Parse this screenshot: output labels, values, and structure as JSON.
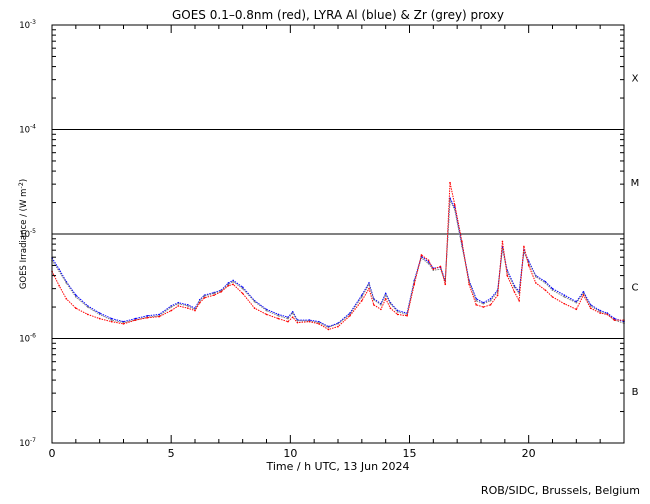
{
  "chart_data": {
    "type": "line",
    "title": "GOES 0.1–0.8nm (red), LYRA Al (blue) & Zr (grey) proxy",
    "xlabel": "Time / h UTC, 13 Jun 2024",
    "ylabel_main": "GOES Irradiance / (W m",
    "ylabel_exp": "-2",
    "ylabel_close": ")",
    "y_scale": "log",
    "xlim": [
      0,
      24
    ],
    "ylim": [
      1e-07,
      0.001
    ],
    "grid": false,
    "x_ticks": [
      {
        "value": 0,
        "label": "0"
      },
      {
        "value": 5,
        "label": "5"
      },
      {
        "value": 10,
        "label": "10"
      },
      {
        "value": 15,
        "label": "15"
      },
      {
        "value": 20,
        "label": "20"
      }
    ],
    "y_ticks": [
      {
        "exp": -7,
        "base": "10",
        "sup": "-7"
      },
      {
        "exp": -6,
        "base": "10",
        "sup": "-6"
      },
      {
        "exp": -5,
        "base": "10",
        "sup": "-5"
      },
      {
        "exp": -4,
        "base": "10",
        "sup": "-4"
      },
      {
        "exp": -3,
        "base": "10",
        "sup": "-3"
      }
    ],
    "class_thresholds": [
      1e-06,
      1e-05,
      0.0001
    ],
    "flare_classes": [
      {
        "label": "B",
        "log_mid": -6.5
      },
      {
        "label": "C",
        "log_mid": -5.5
      },
      {
        "label": "M",
        "log_mid": -4.5
      },
      {
        "label": "X",
        "log_mid": -3.5
      }
    ],
    "series": [
      {
        "color": "#0000ff",
        "values": [
          [
            0,
            5.9e-06
          ],
          [
            0.3,
            4.6e-06
          ],
          [
            0.6,
            3.5e-06
          ],
          [
            1.0,
            2.6e-06
          ],
          [
            1.5,
            2.05e-06
          ],
          [
            2.0,
            1.75e-06
          ],
          [
            2.5,
            1.55e-06
          ],
          [
            3.0,
            1.45e-06
          ],
          [
            3.5,
            1.55e-06
          ],
          [
            4.0,
            1.65e-06
          ],
          [
            4.5,
            1.7e-06
          ],
          [
            5.0,
            2.05e-06
          ],
          [
            5.3,
            2.2e-06
          ],
          [
            5.7,
            2.1e-06
          ],
          [
            6.0,
            1.95e-06
          ],
          [
            6.2,
            2.35e-06
          ],
          [
            6.4,
            2.6e-06
          ],
          [
            6.8,
            2.75e-06
          ],
          [
            7.1,
            2.9e-06
          ],
          [
            7.4,
            3.4e-06
          ],
          [
            7.6,
            3.6e-06
          ],
          [
            8.0,
            3.1e-06
          ],
          [
            8.5,
            2.3e-06
          ],
          [
            9.0,
            1.9e-06
          ],
          [
            9.5,
            1.7e-06
          ],
          [
            9.9,
            1.6e-06
          ],
          [
            10.1,
            1.8e-06
          ],
          [
            10.3,
            1.5e-06
          ],
          [
            10.8,
            1.5e-06
          ],
          [
            11.2,
            1.45e-06
          ],
          [
            11.6,
            1.3e-06
          ],
          [
            12.0,
            1.4e-06
          ],
          [
            12.5,
            1.75e-06
          ],
          [
            13.0,
            2.6e-06
          ],
          [
            13.3,
            3.4e-06
          ],
          [
            13.5,
            2.4e-06
          ],
          [
            13.8,
            2.15e-06
          ],
          [
            14.0,
            2.7e-06
          ],
          [
            14.2,
            2.2e-06
          ],
          [
            14.5,
            1.85e-06
          ],
          [
            14.9,
            1.75e-06
          ],
          [
            15.2,
            3.6e-06
          ],
          [
            15.5,
            6.1e-06
          ],
          [
            15.8,
            5.4e-06
          ],
          [
            16.0,
            4.7e-06
          ],
          [
            16.3,
            4.8e-06
          ],
          [
            16.5,
            3.6e-06
          ],
          [
            16.7,
            2.2e-05
          ],
          [
            16.9,
            1.8e-05
          ],
          [
            17.2,
            8e-06
          ],
          [
            17.5,
            3.6e-06
          ],
          [
            17.8,
            2.4e-06
          ],
          [
            18.1,
            2.2e-06
          ],
          [
            18.4,
            2.4e-06
          ],
          [
            18.7,
            2.9e-06
          ],
          [
            18.9,
            7.5e-06
          ],
          [
            19.1,
            4.5e-06
          ],
          [
            19.4,
            3.2e-06
          ],
          [
            19.6,
            2.8e-06
          ],
          [
            19.8,
            7e-06
          ],
          [
            20.0,
            5.5e-06
          ],
          [
            20.3,
            4e-06
          ],
          [
            20.7,
            3.5e-06
          ],
          [
            21.0,
            3e-06
          ],
          [
            21.5,
            2.6e-06
          ],
          [
            22.0,
            2.25e-06
          ],
          [
            22.3,
            2.8e-06
          ],
          [
            22.6,
            2.1e-06
          ],
          [
            23.0,
            1.85e-06
          ],
          [
            23.3,
            1.75e-06
          ],
          [
            23.6,
            1.55e-06
          ],
          [
            24.0,
            1.45e-06
          ]
        ]
      },
      {
        "color": "#808080",
        "values": [
          [
            0,
            5.6e-06
          ],
          [
            0.3,
            4.4e-06
          ],
          [
            0.6,
            3.4e-06
          ],
          [
            1.0,
            2.5e-06
          ],
          [
            1.5,
            2e-06
          ],
          [
            2.0,
            1.7e-06
          ],
          [
            2.5,
            1.5e-06
          ],
          [
            3.0,
            1.42e-06
          ],
          [
            3.5,
            1.5e-06
          ],
          [
            4.0,
            1.6e-06
          ],
          [
            4.5,
            1.65e-06
          ],
          [
            5.0,
            2e-06
          ],
          [
            5.3,
            2.15e-06
          ],
          [
            5.7,
            2.05e-06
          ],
          [
            6.0,
            1.9e-06
          ],
          [
            6.2,
            2.3e-06
          ],
          [
            6.4,
            2.55e-06
          ],
          [
            6.8,
            2.7e-06
          ],
          [
            7.1,
            2.85e-06
          ],
          [
            7.4,
            3.3e-06
          ],
          [
            7.6,
            3.5e-06
          ],
          [
            8.0,
            3e-06
          ],
          [
            8.5,
            2.25e-06
          ],
          [
            9.0,
            1.85e-06
          ],
          [
            9.5,
            1.65e-06
          ],
          [
            9.9,
            1.55e-06
          ],
          [
            10.1,
            1.75e-06
          ],
          [
            10.3,
            1.48e-06
          ],
          [
            10.8,
            1.47e-06
          ],
          [
            11.2,
            1.42e-06
          ],
          [
            11.6,
            1.28e-06
          ],
          [
            12.0,
            1.38e-06
          ],
          [
            12.5,
            1.7e-06
          ],
          [
            13.0,
            2.5e-06
          ],
          [
            13.3,
            3.3e-06
          ],
          [
            13.5,
            2.35e-06
          ],
          [
            13.8,
            2.1e-06
          ],
          [
            14.0,
            2.6e-06
          ],
          [
            14.2,
            2.15e-06
          ],
          [
            14.5,
            1.8e-06
          ],
          [
            14.9,
            1.7e-06
          ],
          [
            15.2,
            3.5e-06
          ],
          [
            15.5,
            5.9e-06
          ],
          [
            15.8,
            5.2e-06
          ],
          [
            16.0,
            4.5e-06
          ],
          [
            16.3,
            4.6e-06
          ],
          [
            16.5,
            3.5e-06
          ],
          [
            16.7,
            2.1e-05
          ],
          [
            16.9,
            1.7e-05
          ],
          [
            17.2,
            7.6e-06
          ],
          [
            17.5,
            3.5e-06
          ],
          [
            17.8,
            2.3e-06
          ],
          [
            18.1,
            2.15e-06
          ],
          [
            18.4,
            2.3e-06
          ],
          [
            18.7,
            2.8e-06
          ],
          [
            18.9,
            7.2e-06
          ],
          [
            19.1,
            4.3e-06
          ],
          [
            19.4,
            3.1e-06
          ],
          [
            19.6,
            2.7e-06
          ],
          [
            19.8,
            6.7e-06
          ],
          [
            20.0,
            5.3e-06
          ],
          [
            20.3,
            3.9e-06
          ],
          [
            20.7,
            3.4e-06
          ],
          [
            21.0,
            2.9e-06
          ],
          [
            21.5,
            2.5e-06
          ],
          [
            22.0,
            2.2e-06
          ],
          [
            22.3,
            2.7e-06
          ],
          [
            22.6,
            2.05e-06
          ],
          [
            23.0,
            1.8e-06
          ],
          [
            23.3,
            1.7e-06
          ],
          [
            23.6,
            1.5e-06
          ],
          [
            24.0,
            1.4e-06
          ]
        ]
      },
      {
        "color": "#ff0000",
        "values": [
          [
            0,
            4.4e-06
          ],
          [
            0.3,
            3.2e-06
          ],
          [
            0.6,
            2.4e-06
          ],
          [
            1.0,
            1.95e-06
          ],
          [
            1.5,
            1.7e-06
          ],
          [
            2.0,
            1.55e-06
          ],
          [
            2.5,
            1.45e-06
          ],
          [
            3.0,
            1.38e-06
          ],
          [
            3.5,
            1.5e-06
          ],
          [
            4.0,
            1.58e-06
          ],
          [
            4.5,
            1.62e-06
          ],
          [
            5.0,
            1.85e-06
          ],
          [
            5.3,
            2.05e-06
          ],
          [
            5.7,
            1.95e-06
          ],
          [
            6.0,
            1.85e-06
          ],
          [
            6.2,
            2.2e-06
          ],
          [
            6.4,
            2.45e-06
          ],
          [
            6.8,
            2.6e-06
          ],
          [
            7.1,
            2.8e-06
          ],
          [
            7.4,
            3.2e-06
          ],
          [
            7.6,
            3.3e-06
          ],
          [
            8.0,
            2.7e-06
          ],
          [
            8.5,
            1.95e-06
          ],
          [
            9.0,
            1.7e-06
          ],
          [
            9.5,
            1.55e-06
          ],
          [
            9.9,
            1.45e-06
          ],
          [
            10.1,
            1.6e-06
          ],
          [
            10.3,
            1.42e-06
          ],
          [
            10.8,
            1.45e-06
          ],
          [
            11.2,
            1.38e-06
          ],
          [
            11.6,
            1.22e-06
          ],
          [
            12.0,
            1.3e-06
          ],
          [
            12.5,
            1.65e-06
          ],
          [
            13.0,
            2.3e-06
          ],
          [
            13.3,
            3e-06
          ],
          [
            13.5,
            2.1e-06
          ],
          [
            13.8,
            1.9e-06
          ],
          [
            14.0,
            2.4e-06
          ],
          [
            14.2,
            1.95e-06
          ],
          [
            14.5,
            1.7e-06
          ],
          [
            14.9,
            1.65e-06
          ],
          [
            15.2,
            3.3e-06
          ],
          [
            15.5,
            6.3e-06
          ],
          [
            15.8,
            5.6e-06
          ],
          [
            16.0,
            4.6e-06
          ],
          [
            16.3,
            4.9e-06
          ],
          [
            16.5,
            3.3e-06
          ],
          [
            16.7,
            3.1e-05
          ],
          [
            16.9,
            1.9e-05
          ],
          [
            17.2,
            8.5e-06
          ],
          [
            17.5,
            3.3e-06
          ],
          [
            17.8,
            2.1e-06
          ],
          [
            18.1,
            2e-06
          ],
          [
            18.4,
            2.1e-06
          ],
          [
            18.7,
            2.6e-06
          ],
          [
            18.9,
            8.5e-06
          ],
          [
            19.1,
            4e-06
          ],
          [
            19.4,
            2.8e-06
          ],
          [
            19.6,
            2.3e-06
          ],
          [
            19.8,
            7.6e-06
          ],
          [
            20.0,
            5e-06
          ],
          [
            20.3,
            3.4e-06
          ],
          [
            20.7,
            2.9e-06
          ],
          [
            21.0,
            2.5e-06
          ],
          [
            21.5,
            2.15e-06
          ],
          [
            22.0,
            1.9e-06
          ],
          [
            22.3,
            2.6e-06
          ],
          [
            22.6,
            1.95e-06
          ],
          [
            23.0,
            1.75e-06
          ],
          [
            23.3,
            1.7e-06
          ],
          [
            23.6,
            1.5e-06
          ],
          [
            24.0,
            1.5e-06
          ]
        ]
      }
    ]
  },
  "footer": {
    "credit": "ROB/SIDC, Brussels, Belgium"
  }
}
